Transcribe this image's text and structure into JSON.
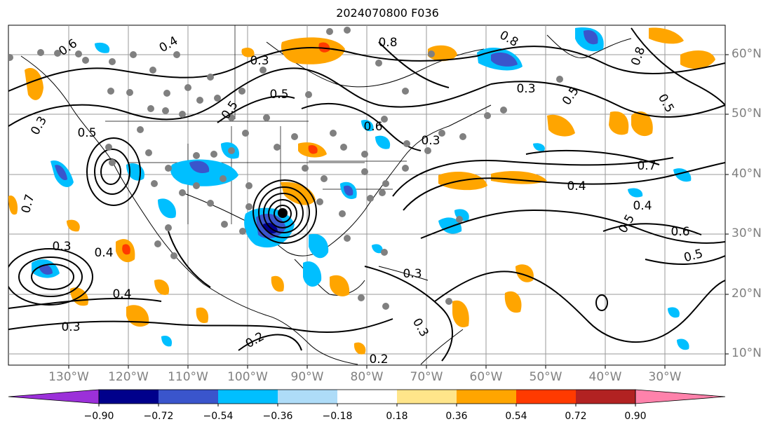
{
  "title": "2024070800 F036",
  "longitude_labels": [
    "130°W",
    "120°W",
    "110°W",
    "100°W",
    "90°W",
    "80°W",
    "70°W",
    "60°W",
    "50°W",
    "40°W",
    "30°W"
  ],
  "latitude_labels": [
    "60°N",
    "50°N",
    "40°N",
    "30°N",
    "20°N",
    "10°N"
  ],
  "colorbar": {
    "ticks": [
      "−0.90",
      "−0.72",
      "−0.54",
      "−0.36",
      "−0.18",
      "0.18",
      "0.36",
      "0.54",
      "0.72",
      "0.90"
    ],
    "colors": [
      "#9b30d9",
      "#00008b",
      "#3a55cc",
      "#00bfff",
      "#aedcf8",
      "#ffffff",
      "#ffe58a",
      "#ffa500",
      "#ff3a00",
      "#b22222",
      "#ff82ab"
    ]
  },
  "contour_labels": [
    "0.6",
    "0.4",
    "0.3",
    "0.5",
    "0.8",
    "0.7",
    "0.4",
    "0.3",
    "0.5",
    "0.3",
    "0.8",
    "0.4",
    "0.4",
    "0.5",
    "0.6",
    "0.5",
    "0.4",
    "0.3",
    "0.3",
    "0.2",
    "0.2",
    "0.3",
    "0.7",
    "0.3",
    "0.5",
    "0.6",
    "0.5",
    "0.8",
    "0.5",
    "0.3"
  ]
}
